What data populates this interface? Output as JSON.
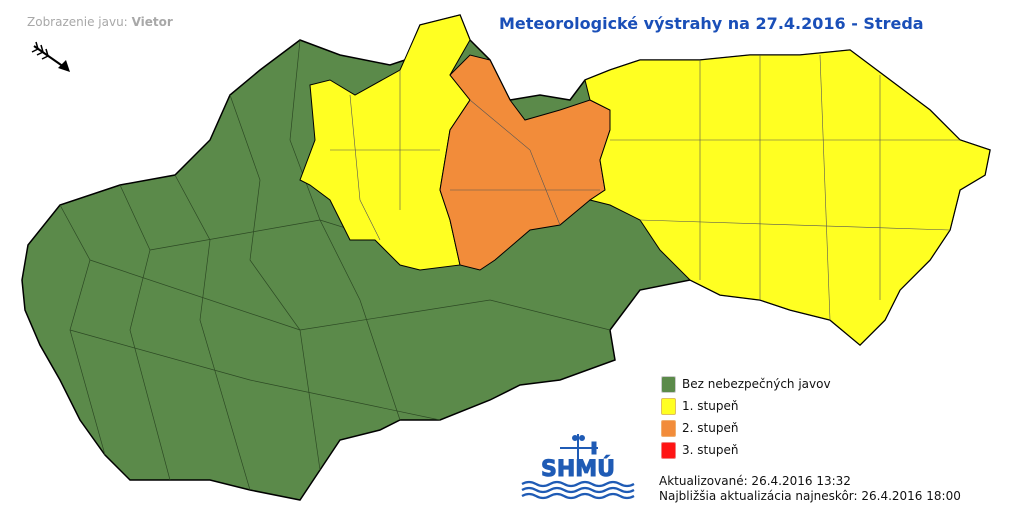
{
  "header": {
    "wind_label": "Zobrazenie javu:",
    "wind_value": "Vietor",
    "title": "Meteorologické výstrahy na 27.4.2016 - Streda"
  },
  "colors": {
    "none": "#5b8a4a",
    "level1": "#ffff22",
    "level2": "#f28c3a",
    "level3": "#ff1414",
    "title": "#1a4fb8"
  },
  "legend": [
    {
      "label": "Bez nebezpečných javov",
      "color": "#5b8a4a"
    },
    {
      "label": "1. stupeň",
      "color": "#ffff22"
    },
    {
      "label": "2. stupeň",
      "color": "#f28c3a"
    },
    {
      "label": "3. stupeň",
      "color": "#ff1414"
    }
  ],
  "logo": {
    "text": "SHMÚ"
  },
  "updates": {
    "updated": "Aktualizované: 26.4.2016 13:32",
    "next": "Najbližšia aktualizácia najneskôr: 26.4.2016 18:00"
  }
}
